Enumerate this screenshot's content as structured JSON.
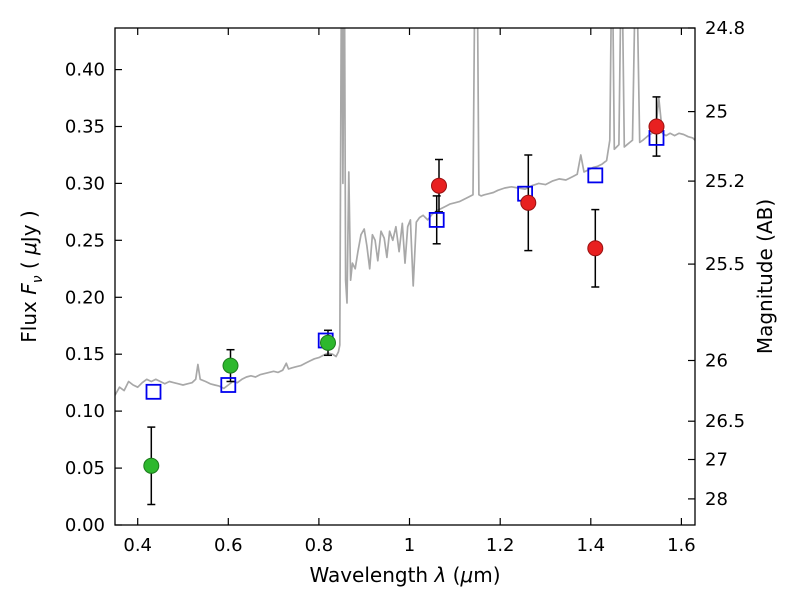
{
  "figure": {
    "background": "#ffffff",
    "frame_color": "#000000"
  },
  "chart_data": {
    "type": "line+scatter",
    "title": "",
    "xlabel": "Wavelength λ (μm)",
    "ylabel": "Flux Fν ( μJy )",
    "y2label": "Magnitude (AB)",
    "xlabel_parts": [
      {
        "t": "Wavelength  "
      },
      {
        "t": "λ",
        "it": true
      },
      {
        "t": " ("
      },
      {
        "t": "μ",
        "it": true
      },
      {
        "t": "m)"
      }
    ],
    "ylabel_parts": [
      {
        "t": "Flux  "
      },
      {
        "t": "F",
        "it": true
      },
      {
        "t": "ν",
        "it": true,
        "sub": true
      },
      {
        "t": "  ( "
      },
      {
        "t": "μ",
        "it": true
      },
      {
        "t": "Jy )"
      }
    ],
    "xlim": [
      0.35,
      1.63
    ],
    "ylim": [
      0.0,
      0.4365
    ],
    "grid": false,
    "legend": "none",
    "x_ticks": [
      {
        "v": 0.4,
        "label": "0.4"
      },
      {
        "v": 0.6,
        "label": "0.6"
      },
      {
        "v": 0.8,
        "label": "0.8"
      },
      {
        "v": 1.0,
        "label": "1"
      },
      {
        "v": 1.2,
        "label": "1.2"
      },
      {
        "v": 1.4,
        "label": "1.4"
      },
      {
        "v": 1.6,
        "label": "1.6"
      }
    ],
    "y_ticks": [
      {
        "v": 0.0,
        "label": "0.00"
      },
      {
        "v": 0.05,
        "label": "0.05"
      },
      {
        "v": 0.1,
        "label": "0.10"
      },
      {
        "v": 0.15,
        "label": "0.15"
      },
      {
        "v": 0.2,
        "label": "0.20"
      },
      {
        "v": 0.25,
        "label": "0.25"
      },
      {
        "v": 0.3,
        "label": "0.30"
      },
      {
        "v": 0.35,
        "label": "0.35"
      },
      {
        "v": 0.4,
        "label": "0.40"
      }
    ],
    "y2_ticks": [
      {
        "flux": 0.4365,
        "label": "24.8"
      },
      {
        "flux": 0.3631,
        "label": "25"
      },
      {
        "flux": 0.302,
        "label": "25.2"
      },
      {
        "flux": 0.2291,
        "label": "25.5"
      },
      {
        "flux": 0.1445,
        "label": "26"
      },
      {
        "flux": 0.0912,
        "label": "26.5"
      },
      {
        "flux": 0.0575,
        "label": "27"
      },
      {
        "flux": 0.0229,
        "label": "28"
      }
    ],
    "spectrum": {
      "name": "model-spectrum",
      "color": "#a8a8a8",
      "linewidth": 1.7,
      "points": [
        [
          0.35,
          0.114
        ],
        [
          0.36,
          0.121
        ],
        [
          0.37,
          0.118
        ],
        [
          0.38,
          0.126
        ],
        [
          0.39,
          0.123
        ],
        [
          0.4,
          0.121
        ],
        [
          0.41,
          0.125
        ],
        [
          0.42,
          0.128
        ],
        [
          0.43,
          0.126
        ],
        [
          0.44,
          0.128
        ],
        [
          0.45,
          0.126
        ],
        [
          0.46,
          0.124
        ],
        [
          0.47,
          0.126
        ],
        [
          0.48,
          0.125
        ],
        [
          0.49,
          0.124
        ],
        [
          0.5,
          0.123
        ],
        [
          0.51,
          0.124
        ],
        [
          0.52,
          0.125
        ],
        [
          0.528,
          0.128
        ],
        [
          0.533,
          0.141
        ],
        [
          0.538,
          0.128
        ],
        [
          0.55,
          0.126
        ],
        [
          0.56,
          0.124
        ],
        [
          0.57,
          0.123
        ],
        [
          0.58,
          0.122
        ],
        [
          0.59,
          0.12
        ],
        [
          0.6,
          0.123
        ],
        [
          0.61,
          0.126
        ],
        [
          0.62,
          0.125
        ],
        [
          0.63,
          0.128
        ],
        [
          0.64,
          0.13
        ],
        [
          0.65,
          0.131
        ],
        [
          0.66,
          0.13
        ],
        [
          0.67,
          0.132
        ],
        [
          0.68,
          0.133
        ],
        [
          0.69,
          0.134
        ],
        [
          0.7,
          0.135
        ],
        [
          0.71,
          0.134
        ],
        [
          0.72,
          0.136
        ],
        [
          0.728,
          0.142
        ],
        [
          0.733,
          0.137
        ],
        [
          0.74,
          0.138
        ],
        [
          0.75,
          0.139
        ],
        [
          0.76,
          0.14
        ],
        [
          0.77,
          0.142
        ],
        [
          0.78,
          0.144
        ],
        [
          0.79,
          0.146
        ],
        [
          0.8,
          0.147
        ],
        [
          0.81,
          0.149
        ],
        [
          0.82,
          0.151
        ],
        [
          0.83,
          0.15
        ],
        [
          0.838,
          0.148
        ],
        [
          0.843,
          0.152
        ],
        [
          0.846,
          0.158
        ],
        [
          0.85,
          0.52
        ],
        [
          0.853,
          0.3
        ],
        [
          0.856,
          0.52
        ],
        [
          0.859,
          0.215
        ],
        [
          0.862,
          0.195
        ],
        [
          0.866,
          0.31
        ],
        [
          0.87,
          0.215
        ],
        [
          0.874,
          0.23
        ],
        [
          0.88,
          0.225
        ],
        [
          0.886,
          0.24
        ],
        [
          0.893,
          0.255
        ],
        [
          0.9,
          0.26
        ],
        [
          0.906,
          0.245
        ],
        [
          0.912,
          0.225
        ],
        [
          0.918,
          0.255
        ],
        [
          0.924,
          0.25
        ],
        [
          0.93,
          0.232
        ],
        [
          0.937,
          0.258
        ],
        [
          0.944,
          0.252
        ],
        [
          0.95,
          0.235
        ],
        [
          0.956,
          0.258
        ],
        [
          0.963,
          0.25
        ],
        [
          0.97,
          0.262
        ],
        [
          0.977,
          0.24
        ],
        [
          0.984,
          0.265
        ],
        [
          0.99,
          0.23
        ],
        [
          0.996,
          0.262
        ],
        [
          1.002,
          0.268
        ],
        [
          1.008,
          0.21
        ],
        [
          1.015,
          0.266
        ],
        [
          1.022,
          0.27
        ],
        [
          1.03,
          0.272
        ],
        [
          1.04,
          0.268
        ],
        [
          1.05,
          0.273
        ],
        [
          1.06,
          0.276
        ],
        [
          1.07,
          0.278
        ],
        [
          1.08,
          0.28
        ],
        [
          1.09,
          0.282
        ],
        [
          1.1,
          0.283
        ],
        [
          1.11,
          0.284
        ],
        [
          1.12,
          0.286
        ],
        [
          1.13,
          0.288
        ],
        [
          1.14,
          0.29
        ],
        [
          1.145,
          0.52
        ],
        [
          1.149,
          0.52
        ],
        [
          1.153,
          0.29
        ],
        [
          1.158,
          0.289
        ],
        [
          1.165,
          0.29
        ],
        [
          1.175,
          0.291
        ],
        [
          1.185,
          0.292
        ],
        [
          1.195,
          0.294
        ],
        [
          1.21,
          0.296
        ],
        [
          1.225,
          0.297
        ],
        [
          1.24,
          0.296
        ],
        [
          1.255,
          0.295
        ],
        [
          1.27,
          0.298
        ],
        [
          1.285,
          0.3
        ],
        [
          1.3,
          0.299
        ],
        [
          1.315,
          0.302
        ],
        [
          1.33,
          0.304
        ],
        [
          1.345,
          0.303
        ],
        [
          1.36,
          0.306
        ],
        [
          1.37,
          0.308
        ],
        [
          1.378,
          0.325
        ],
        [
          1.385,
          0.31
        ],
        [
          1.395,
          0.312
        ],
        [
          1.405,
          0.314
        ],
        [
          1.415,
          0.315
        ],
        [
          1.425,
          0.317
        ],
        [
          1.435,
          0.32
        ],
        [
          1.442,
          0.338
        ],
        [
          1.447,
          0.52
        ],
        [
          1.452,
          0.33
        ],
        [
          1.457,
          0.332
        ],
        [
          1.462,
          0.334
        ],
        [
          1.468,
          0.52
        ],
        [
          1.474,
          0.332
        ],
        [
          1.48,
          0.334
        ],
        [
          1.486,
          0.336
        ],
        [
          1.492,
          0.338
        ],
        [
          1.5,
          0.52
        ],
        [
          1.508,
          0.336
        ],
        [
          1.515,
          0.338
        ],
        [
          1.521,
          0.34
        ],
        [
          1.527,
          0.342
        ],
        [
          1.535,
          0.344
        ],
        [
          1.543,
          0.346
        ],
        [
          1.55,
          0.375
        ],
        [
          1.558,
          0.344
        ],
        [
          1.566,
          0.342
        ],
        [
          1.575,
          0.344
        ],
        [
          1.585,
          0.342
        ],
        [
          1.595,
          0.344
        ],
        [
          1.605,
          0.343
        ],
        [
          1.615,
          0.341
        ],
        [
          1.625,
          0.34
        ],
        [
          1.63,
          0.338
        ]
      ]
    },
    "series": [
      {
        "name": "green-photometry",
        "marker": "circle",
        "color": "#2db82d",
        "edge": "#1d7a1d",
        "points": [
          [
            0.43,
            0.052,
            0.034
          ],
          [
            0.605,
            0.14,
            0.014
          ],
          [
            0.82,
            0.16,
            0.011
          ]
        ]
      },
      {
        "name": "blue-model-photometry",
        "marker": "square-open",
        "color": "#0000ee",
        "points": [
          [
            0.435,
            0.117,
            0
          ],
          [
            0.6,
            0.123,
            0
          ],
          [
            0.815,
            0.162,
            0
          ],
          [
            1.06,
            0.268,
            0.021
          ],
          [
            1.255,
            0.291,
            0
          ],
          [
            1.41,
            0.307,
            0
          ],
          [
            1.545,
            0.34,
            0
          ]
        ]
      },
      {
        "name": "red-photometry",
        "marker": "circle",
        "color": "#e82020",
        "edge": "#991111",
        "points": [
          [
            1.065,
            0.298,
            0.023
          ],
          [
            1.262,
            0.283,
            0.042
          ],
          [
            1.41,
            0.243,
            0.034
          ],
          [
            1.545,
            0.35,
            0.026
          ]
        ]
      }
    ]
  }
}
